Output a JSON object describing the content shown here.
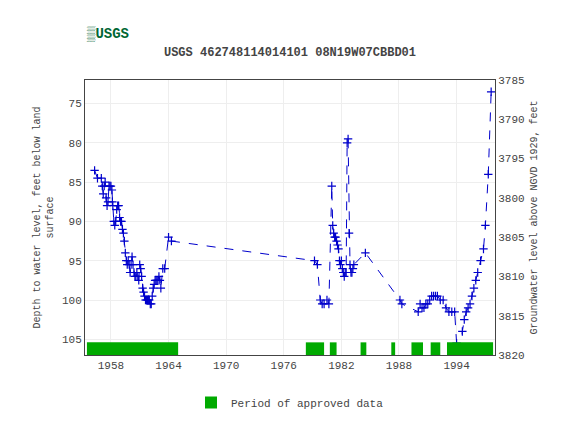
{
  "chart_data": {
    "type": "line",
    "title": "USGS 462748114014101 08N19W07CBBD01",
    "annotations": [
      "▒USGS"
    ],
    "x_label": null,
    "y_label": "Depth to water level, feet below land\nsurface",
    "y2_label": "Groundwater level above NGVD 1929, feet",
    "xlim": [
      1955.3,
      1998.0
    ],
    "ylim": [
      107,
      72
    ],
    "y2lim": [
      3820,
      3785
    ],
    "xticks": [
      1958,
      1964,
      1970,
      1976,
      1982,
      1988,
      1994
    ],
    "yticks": [
      75,
      80,
      85,
      90,
      95,
      100,
      105
    ],
    "y2ticks": [
      3820,
      3815,
      3810,
      3805,
      3800,
      3795,
      3790,
      3785
    ],
    "grid": true,
    "legend": "bottom",
    "color": "#0000cc",
    "marker": "+",
    "line_style": "dashed",
    "x": [
      1956.3,
      1956.6,
      1957.0,
      1957.1,
      1957.2,
      1957.3,
      1957.4,
      1957.5,
      1957.6,
      1957.7,
      1957.8,
      1957.9,
      1958.0,
      1958.1,
      1958.15,
      1958.2,
      1958.3,
      1958.4,
      1958.5,
      1958.6,
      1958.7,
      1958.8,
      1958.9,
      1959.0,
      1959.1,
      1959.2,
      1959.3,
      1959.4,
      1959.5,
      1959.6,
      1959.7,
      1959.8,
      1959.9,
      1960.0,
      1960.1,
      1960.2,
      1960.3,
      1960.4,
      1960.5,
      1960.6,
      1960.7,
      1960.8,
      1960.9,
      1961.0,
      1961.1,
      1961.2,
      1961.3,
      1961.4,
      1961.5,
      1961.6,
      1961.7,
      1961.8,
      1961.9,
      1962.0,
      1962.1,
      1962.2,
      1962.3,
      1962.4,
      1962.5,
      1962.6,
      1962.7,
      1962.8,
      1962.9,
      1963.0,
      1963.1,
      1963.2,
      1963.4,
      1963.6,
      1964.0,
      1964.3,
      1979.2,
      1979.5,
      1979.8,
      1980.0,
      1980.2,
      1980.5,
      1980.7,
      1981.0,
      1981.1,
      1981.2,
      1981.3,
      1981.4,
      1981.5,
      1981.6,
      1981.7,
      1981.8,
      1981.9,
      1982.0,
      1982.1,
      1982.2,
      1982.3,
      1982.4,
      1982.5,
      1982.6,
      1982.7,
      1982.8,
      1982.9,
      1983.0,
      1983.1,
      1983.2,
      1983.3,
      1984.5,
      1988.1,
      1988.3,
      1990.0,
      1990.2,
      1990.4,
      1990.6,
      1990.8,
      1991.0,
      1991.2,
      1991.4,
      1991.6,
      1991.8,
      1992.0,
      1992.3,
      1992.6,
      1992.9,
      1993.2,
      1993.5,
      1993.8,
      1994.0,
      1994.2,
      1994.4,
      1994.6,
      1994.8,
      1995.0,
      1995.2,
      1995.4,
      1995.6,
      1995.8,
      1996.0,
      1996.2,
      1996.5,
      1996.8,
      1997.0,
      1997.3,
      1997.6
    ],
    "values": [
      83.5,
      84.5,
      84.5,
      85.5,
      86.5,
      85.5,
      85.0,
      87.0,
      88.0,
      87.5,
      85.5,
      85.5,
      85.5,
      86.0,
      87.5,
      88.0,
      90.0,
      90.5,
      90.0,
      88.5,
      88.0,
      88.0,
      89.5,
      90.0,
      90.0,
      91.0,
      91.5,
      92.5,
      94.0,
      95.0,
      95.5,
      95.0,
      95.5,
      96.5,
      95.5,
      94.5,
      95.5,
      96.5,
      97.0,
      97.0,
      96.5,
      97.0,
      97.5,
      95.5,
      96.0,
      97.0,
      98.5,
      99.0,
      99.5,
      100.0,
      100.0,
      100.0,
      100.0,
      100.0,
      100.5,
      100.5,
      99.5,
      98.5,
      98.0,
      97.5,
      97.5,
      97.5,
      97.5,
      97.0,
      97.5,
      98.5,
      96.0,
      96.0,
      92.0,
      92.5,
      95.0,
      95.5,
      100.0,
      100.5,
      100.5,
      100.0,
      100.5,
      85.5,
      90.5,
      91.5,
      92.0,
      92.0,
      92.5,
      93.0,
      93.5,
      95.0,
      95.5,
      95.0,
      96.0,
      96.5,
      97.0,
      96.5,
      96.5,
      80.0,
      79.5,
      91.5,
      95.5,
      96.5,
      96.5,
      96.0,
      95.5,
      94.0,
      100.0,
      100.5,
      101.5,
      100.5,
      101.0,
      101.0,
      100.5,
      100.5,
      100.0,
      99.5,
      99.5,
      99.5,
      99.5,
      100.0,
      100.0,
      101.0,
      101.5,
      101.5,
      101.5,
      105.5,
      106.5,
      106.5,
      104.0,
      102.5,
      101.5,
      101.0,
      100.5,
      99.5,
      98.5,
      97.5,
      96.5,
      95.0,
      93.5,
      90.5,
      84.0,
      73.5
    ],
    "periods": {
      "name": "Period of approved data",
      "color": "#00aa00",
      "ranges": [
        [
          1955.5,
          1965.0
        ],
        [
          1978.3,
          1980.2
        ],
        [
          1980.8,
          1981.5
        ],
        [
          1984.0,
          1984.6
        ],
        [
          1987.2,
          1987.6
        ],
        [
          1989.3,
          1990.5
        ],
        [
          1991.3,
          1992.3
        ],
        [
          1993.0,
          1997.8
        ]
      ]
    }
  }
}
